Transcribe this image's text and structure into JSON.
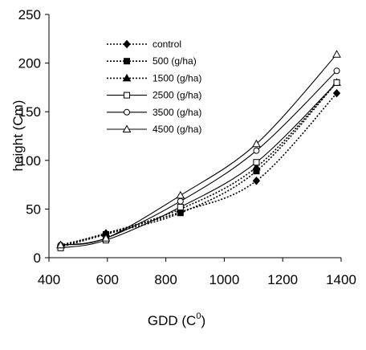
{
  "chart_data": {
    "type": "line",
    "title": "",
    "xlabel": "GDD (C",
    "xlabel_superscript": "0",
    "xlabel_close": ")",
    "ylabel": "height (Cm)",
    "xlim": [
      400,
      1400
    ],
    "ylim": [
      0,
      250
    ],
    "xticks": [
      "400",
      "600",
      "800",
      "1000",
      "1200",
      "1400"
    ],
    "yticks": [
      "0",
      "50",
      "100",
      "150",
      "200",
      "250"
    ],
    "grid": false,
    "legend_placement": "top-left",
    "x": [
      440,
      595,
      850,
      1110,
      1385
    ],
    "series": [
      {
        "name": "control",
        "values": [
          12,
          25,
          47,
          79,
          169
        ],
        "marker": "diamond",
        "fill": "filled",
        "line": "dotted"
      },
      {
        "name": "500 (g/ha)",
        "values": [
          11,
          24,
          46,
          89,
          180
        ],
        "marker": "square",
        "fill": "filled",
        "line": "dotted"
      },
      {
        "name": "1500 (g/ha)",
        "values": [
          13,
          25,
          50,
          93,
          180
        ],
        "marker": "triangle",
        "fill": "filled",
        "line": "dotted"
      },
      {
        "name": "2500 (g/ha)",
        "values": [
          10,
          18,
          52,
          98,
          180
        ],
        "marker": "square",
        "fill": "open",
        "line": "solid"
      },
      {
        "name": "3500 (g/ha)",
        "values": [
          13,
          20,
          58,
          110,
          192
        ],
        "marker": "circle",
        "fill": "open",
        "line": "solid"
      },
      {
        "name": "4500 (g/ha)",
        "values": [
          13,
          20,
          64,
          117,
          209
        ],
        "marker": "triangle",
        "fill": "open",
        "line": "solid"
      }
    ]
  }
}
